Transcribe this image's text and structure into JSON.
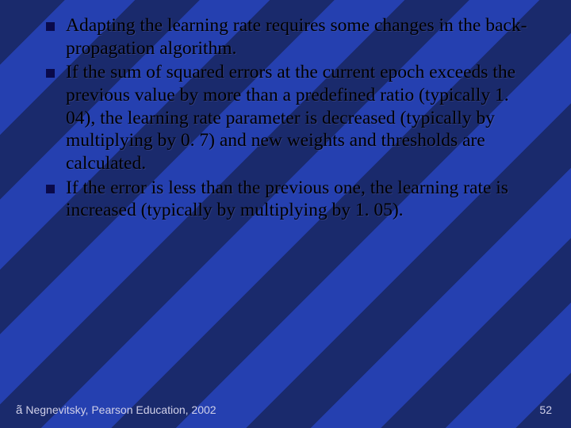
{
  "background": {
    "stripe_color_dark": "#1a2a6c",
    "stripe_color_light": "#2540b0",
    "stripe_angle_deg": 135
  },
  "bullets": [
    {
      "text": "Adapting the learning rate requires some changes in the back-propagation algorithm."
    },
    {
      "text": "If the sum of squared errors at the current epoch exceeds the previous value by more than a predefined ratio (typically 1. 04), the learning rate parameter is decreased (typically by multiplying by 0. 7) and new weights and thresholds are calculated."
    },
    {
      "text": "If the error is less than the previous one, the learning rate is increased (typically by multiplying by 1. 05)."
    }
  ],
  "bullet_marker_color": "#0a0a4a",
  "body_text_color": "#000000",
  "body_font_size_pt": 18,
  "footer": {
    "copyright_symbol": "ã",
    "copyright_text": "Negnevitsky, Pearson Education, 2002",
    "page_number": "52",
    "text_color": "#d0d0e8",
    "font_size_pt": 10
  }
}
